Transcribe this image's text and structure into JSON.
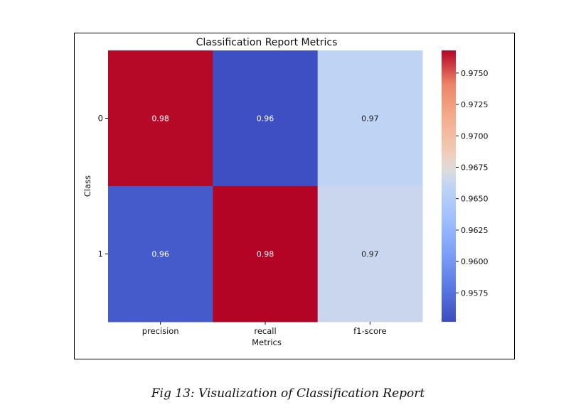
{
  "chart_data": {
    "type": "heatmap",
    "title": "Classification Report Metrics",
    "xlabel": "Metrics",
    "ylabel": "Class",
    "x_categories": [
      "precision",
      "recall",
      "f1-score"
    ],
    "y_categories": [
      "0",
      "1"
    ],
    "values": [
      [
        0.9767,
        0.9554,
        0.9659
      ],
      [
        0.9561,
        0.9768,
        0.9664
      ]
    ],
    "annotations": [
      [
        "0.98",
        "0.96",
        "0.97"
      ],
      [
        "0.96",
        "0.98",
        "0.97"
      ]
    ],
    "colormap": "coolwarm",
    "colorbar": {
      "range": [
        0.9552,
        0.9768
      ],
      "ticks": [
        0.9575,
        0.96,
        0.9625,
        0.965,
        0.9675,
        0.97,
        0.9725,
        0.975
      ],
      "tick_labels": [
        "0.9575",
        "0.9600",
        "0.9625",
        "0.9650",
        "0.9675",
        "0.9700",
        "0.9725",
        "0.9750"
      ]
    }
  },
  "caption": "Fig 13: Visualization of Classification Report"
}
